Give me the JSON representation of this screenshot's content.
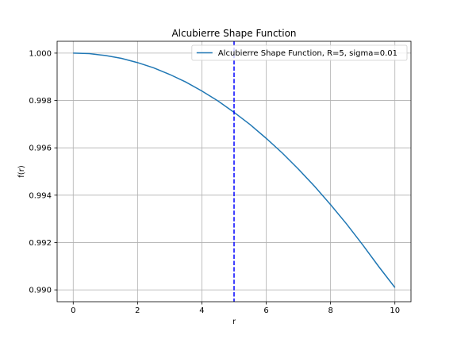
{
  "chart_data": {
    "type": "line",
    "title": "Alcubierre Shape Function",
    "xlabel": "r",
    "ylabel": "f(r)",
    "xlim": [
      -0.5,
      10.5
    ],
    "ylim": [
      0.9895,
      1.0005
    ],
    "xticks": [
      0,
      2,
      4,
      6,
      8,
      10
    ],
    "xtick_labels": [
      "0",
      "2",
      "4",
      "6",
      "8",
      "10"
    ],
    "yticks": [
      0.99,
      0.992,
      0.994,
      0.996,
      0.998,
      1.0
    ],
    "ytick_labels": [
      "0.990",
      "0.992",
      "0.994",
      "0.996",
      "0.998",
      "1.000"
    ],
    "grid": true,
    "legend_position": "upper right",
    "series": [
      {
        "name": "Alcubierre Shape Function, R=5, sigma=0.01",
        "color": "#1f77b4",
        "x": [
          0,
          0.5,
          1,
          1.5,
          2,
          2.5,
          3,
          3.5,
          4,
          4.5,
          5,
          5.5,
          6,
          6.5,
          7,
          7.5,
          8,
          8.5,
          9,
          9.5,
          10
        ],
        "y": [
          1.0,
          0.99998,
          0.9999,
          0.99978,
          0.9996,
          0.99938,
          0.9991,
          0.99878,
          0.9984,
          0.99798,
          0.9975,
          0.99698,
          0.9964,
          0.99578,
          0.9951,
          0.99438,
          0.9936,
          0.99278,
          0.9919,
          0.99098,
          0.9901
        ]
      }
    ],
    "vlines": [
      {
        "x": 5,
        "color": "#0000ff",
        "style": "dashed"
      }
    ]
  }
}
